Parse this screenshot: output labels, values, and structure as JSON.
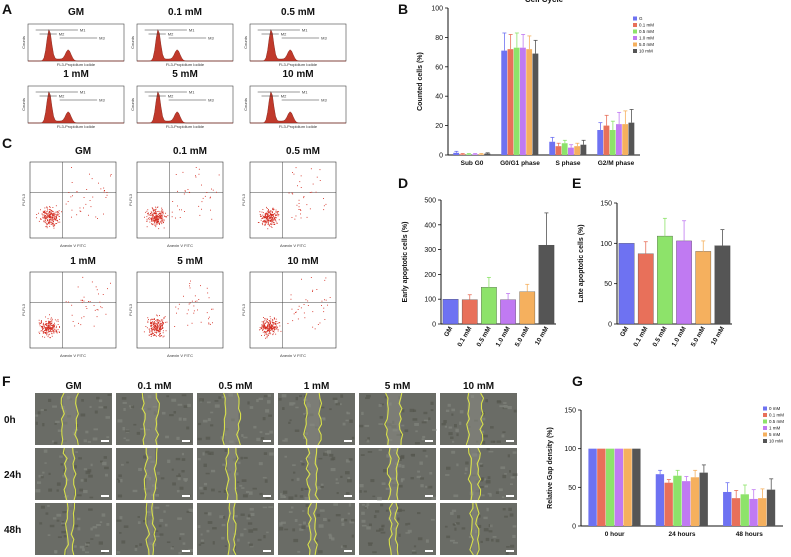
{
  "panel_labels": [
    "A",
    "B",
    "C",
    "D",
    "E",
    "F",
    "G"
  ],
  "histograms": {
    "titles": [
      "GM",
      "0.1 mM",
      "0.5 mM",
      "1 mM",
      "5 mM",
      "10 mM"
    ],
    "xlabel": "FL3-Propidium Iodide",
    "ylabel": "Counts",
    "gates": [
      "M1",
      "M2",
      "M3"
    ]
  },
  "scatter": {
    "titles": [
      "GM",
      "0.1 mM",
      "0.5 mM",
      "1 mM",
      "5 mM",
      "10 mM"
    ],
    "xlabel": "Anexin V FITC",
    "ylabel": "PI-FL3"
  },
  "wound": {
    "columns": [
      "GM",
      "0.1 mM",
      "0.5 mM",
      "1 mM",
      "5 mM",
      "10 mM"
    ],
    "rows": [
      "0h",
      "24h",
      "48h"
    ]
  },
  "colors": {
    "c0": "#6e72f2",
    "c1": "#e8705a",
    "c2": "#8de36a",
    "c3": "#c07af2",
    "c4": "#f5b05e",
    "c5": "#555555"
  },
  "chart_data": [
    {
      "id": "B",
      "type": "bar",
      "title": "Cell Cycle",
      "ylabel": "Counted cells (%)",
      "ylim": [
        0,
        100
      ],
      "yticks": [
        0,
        20,
        40,
        60,
        80,
        100
      ],
      "categories": [
        "Sub G0",
        "G0/G1 phase",
        "S phase",
        "G2/M phase"
      ],
      "legend": [
        "G",
        "0.1 mM",
        "0.5 mM",
        "1.0 mM",
        "5.0 mM",
        "10 mM"
      ],
      "series": [
        {
          "name": "G",
          "values": [
            1.5,
            71,
            9,
            17
          ],
          "errors": [
            1,
            12,
            3,
            5
          ]
        },
        {
          "name": "0.1 mM",
          "values": [
            0.5,
            72,
            6,
            20
          ],
          "errors": [
            0.5,
            10,
            2,
            7
          ]
        },
        {
          "name": "0.5 mM",
          "values": [
            0.5,
            73,
            8,
            17
          ],
          "errors": [
            0.5,
            10,
            2,
            6
          ]
        },
        {
          "name": "1.0 mM",
          "values": [
            0.5,
            73,
            5,
            21
          ],
          "errors": [
            0.5,
            9,
            2,
            8
          ]
        },
        {
          "name": "5.0 mM",
          "values": [
            0.5,
            72,
            6,
            21
          ],
          "errors": [
            0.5,
            9,
            2,
            9
          ]
        },
        {
          "name": "10 mM",
          "values": [
            1,
            69,
            7,
            22
          ],
          "errors": [
            0.5,
            9,
            3,
            9
          ]
        }
      ]
    },
    {
      "id": "D",
      "type": "bar",
      "ylabel": "Early apoptotic cells (%)",
      "ylim": [
        0,
        500
      ],
      "yticks": [
        0,
        100,
        200,
        300,
        400,
        500
      ],
      "categories": [
        "GM",
        "0.1 mM",
        "0.5 mM",
        "1.0 mM",
        "5.0 mM",
        "10 mM"
      ],
      "values": [
        100,
        98,
        148,
        98,
        130,
        318
      ],
      "errors": [
        0,
        20,
        40,
        25,
        30,
        130
      ]
    },
    {
      "id": "E",
      "type": "bar",
      "ylabel": "Late apoptotic cells (%)",
      "ylim": [
        0,
        150
      ],
      "yticks": [
        0,
        50,
        100,
        150
      ],
      "categories": [
        "GM",
        "0.1 mM",
        "0.5 mM",
        "1.0 mM",
        "5.0 mM",
        "10 mM"
      ],
      "values": [
        100,
        87,
        109,
        103,
        90,
        97
      ],
      "errors": [
        0,
        15,
        22,
        25,
        13,
        20
      ]
    },
    {
      "id": "G",
      "type": "bar",
      "ylabel": "Relative Gap density (%)",
      "ylim": [
        0,
        150
      ],
      "yticks": [
        0,
        50,
        100,
        150
      ],
      "categories": [
        "0 hour",
        "24 hours",
        "48 hours"
      ],
      "legend": [
        "0 mM",
        "0.1 mM",
        "0.5 mM",
        "1 mM",
        "5 mM",
        "10 mM"
      ],
      "series": [
        {
          "name": "0 mM",
          "values": [
            100,
            67,
            44
          ],
          "errors": [
            0,
            5,
            12
          ]
        },
        {
          "name": "0.1 mM",
          "values": [
            100,
            56,
            36
          ],
          "errors": [
            0,
            4,
            10
          ]
        },
        {
          "name": "0.5 mM",
          "values": [
            100,
            65,
            41
          ],
          "errors": [
            0,
            7,
            12
          ]
        },
        {
          "name": "1 mM",
          "values": [
            100,
            58,
            35
          ],
          "errors": [
            0,
            6,
            12
          ]
        },
        {
          "name": "5 mM",
          "values": [
            100,
            63,
            36
          ],
          "errors": [
            0,
            9,
            12
          ]
        },
        {
          "name": "10 mM",
          "values": [
            100,
            69,
            47
          ],
          "errors": [
            0,
            10,
            14
          ]
        }
      ]
    }
  ]
}
